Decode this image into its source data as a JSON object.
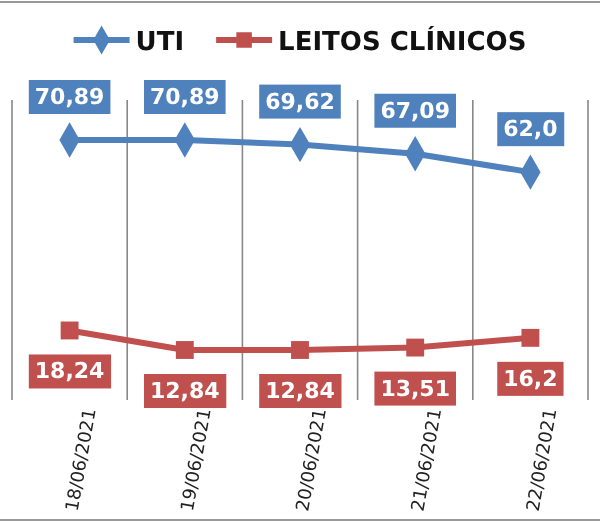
{
  "chart_data": {
    "type": "line",
    "categories": [
      "18/06/2021",
      "19/06/2021",
      "20/06/2021",
      "21/06/2021",
      "22/06/2021"
    ],
    "series": [
      {
        "name": "UTI",
        "color": "#4f81bd",
        "marker": "diamond",
        "values": [
          70.89,
          70.89,
          69.62,
          67.09,
          62.0
        ],
        "value_labels": [
          "70,89",
          "70,89",
          "69,62",
          "67,09",
          "62,0"
        ]
      },
      {
        "name": "LEITOS CLÍNICOS",
        "color": "#c0504d",
        "marker": "square",
        "values": [
          18.24,
          12.84,
          12.84,
          13.51,
          16.2
        ],
        "value_labels": [
          "18,24",
          "12,84",
          "12,84",
          "13,51",
          "16,2"
        ]
      }
    ],
    "legend": "top",
    "grid": "x"
  }
}
